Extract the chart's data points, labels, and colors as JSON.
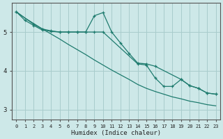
{
  "xlabel": "Humidex (Indice chaleur)",
  "bg_color": "#cde8e8",
  "grid_color": "#a8cccc",
  "line_color": "#1e7b6e",
  "xlim": [
    -0.5,
    23.5
  ],
  "ylim": [
    2.75,
    5.75
  ],
  "yticks": [
    3,
    4,
    5
  ],
  "xticks": [
    0,
    1,
    2,
    3,
    4,
    5,
    6,
    7,
    8,
    9,
    10,
    11,
    12,
    13,
    14,
    15,
    16,
    17,
    18,
    19,
    20,
    21,
    22,
    23
  ],
  "line1_x": [
    0,
    1,
    2,
    3,
    4,
    5,
    6,
    7,
    8,
    9,
    10,
    14,
    15,
    16,
    17,
    18,
    19,
    20,
    21,
    22,
    23
  ],
  "line1_y": [
    5.52,
    5.3,
    5.17,
    5.05,
    5.02,
    5.0,
    5.0,
    5.0,
    5.0,
    5.0,
    5.0,
    4.18,
    4.15,
    3.82,
    3.6,
    3.6,
    3.78,
    3.62,
    3.55,
    3.43,
    3.4
  ],
  "line2_x": [
    0,
    2,
    3,
    4,
    5,
    6,
    7,
    8,
    9,
    10,
    11,
    12,
    13,
    14,
    15,
    16,
    19,
    20,
    21,
    22,
    23
  ],
  "line2_y": [
    5.52,
    5.2,
    5.08,
    5.03,
    5.0,
    5.0,
    5.0,
    5.0,
    5.42,
    5.5,
    5.0,
    4.72,
    4.45,
    4.2,
    4.18,
    4.12,
    3.78,
    3.62,
    3.55,
    3.43,
    3.4
  ],
  "line3_x": [
    0,
    1,
    2,
    3,
    4,
    5,
    6,
    7,
    8,
    9,
    10,
    11,
    12,
    13,
    14,
    15,
    16,
    17,
    18,
    19,
    20,
    21,
    22,
    23
  ],
  "line3_y": [
    5.52,
    5.36,
    5.22,
    5.08,
    4.95,
    4.82,
    4.68,
    4.55,
    4.42,
    4.28,
    4.15,
    4.02,
    3.9,
    3.78,
    3.65,
    3.55,
    3.47,
    3.4,
    3.33,
    3.28,
    3.22,
    3.18,
    3.13,
    3.1
  ]
}
